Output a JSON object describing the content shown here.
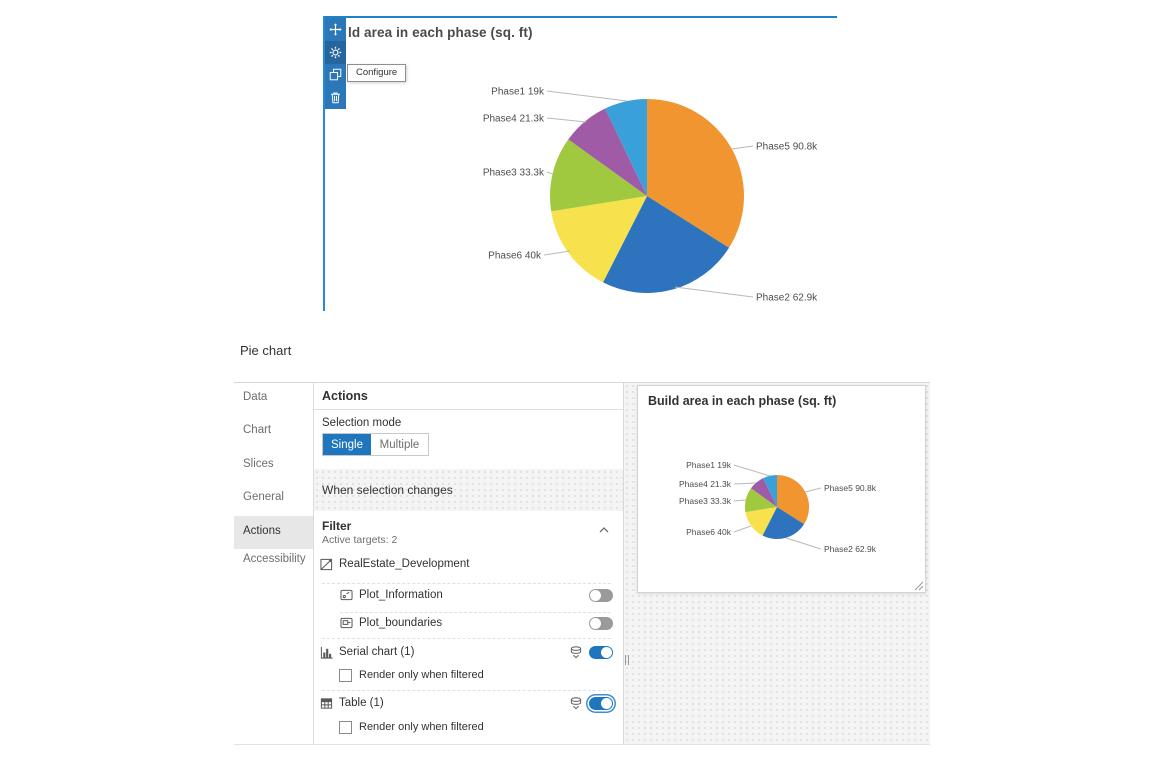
{
  "accent": {
    "blue": "#1f76bd",
    "selection_border": "#1f82c9",
    "toolbar_blue": "#2b77b7",
    "toggle_off": "#9a9a9a"
  },
  "widget": {
    "title_visible": "ld area in each phase (sq. ft)",
    "tooltip": "Configure",
    "toolbar": {
      "move": "Move",
      "settings": "Settings",
      "duplicate": "Duplicate",
      "delete": "Delete"
    }
  },
  "chart_data": {
    "type": "pie",
    "title": "Build area in each phase (sq. ft)",
    "unit": "sq. ft",
    "direction": "clockwise",
    "start_angle_deg": 0,
    "label_style": "outside-with-leader-lines",
    "slices": [
      {
        "name": "Phase5",
        "value": 90800,
        "label": "Phase5 90.8k",
        "color": "#F0952F"
      },
      {
        "name": "Phase2",
        "value": 62900,
        "label": "Phase2 62.9k",
        "color": "#2E73BD"
      },
      {
        "name": "Phase6",
        "value": 40000,
        "label": "Phase6 40k",
        "color": "#F7E14C"
      },
      {
        "name": "Phase3",
        "value": 33300,
        "label": "Phase3 33.3k",
        "color": "#A1C93F"
      },
      {
        "name": "Phase4",
        "value": 21300,
        "label": "Phase4 21.3k",
        "color": "#9F5BA6"
      },
      {
        "name": "Phase1",
        "value": 19000,
        "label": "Phase1 19k",
        "color": "#3AA0DA"
      }
    ]
  },
  "dialog": {
    "title": "Pie chart",
    "tabs": [
      "Data",
      "Chart",
      "Slices",
      "General",
      "Actions",
      "Accessibility"
    ],
    "active_tab": "Actions",
    "actions": {
      "header": "Actions",
      "selection_mode_label": "Selection mode",
      "mode_options": [
        "Single",
        "Multiple"
      ],
      "selected_mode": "Single",
      "when_selection_changes": "When selection changes",
      "filter": {
        "title": "Filter",
        "active_targets": "Active targets: 2",
        "map_target": "RealEstate_Development",
        "layer_targets": [
          {
            "label": "Plot_Information",
            "enabled": false
          },
          {
            "label": "Plot_boundaries",
            "enabled": false
          }
        ],
        "widget_targets": [
          {
            "label": "Serial chart (1)",
            "enabled": true,
            "focused": false,
            "render_only_label": "Render only when filtered",
            "render_only_checked": false
          },
          {
            "label": "Table (1)",
            "enabled": true,
            "focused": true,
            "render_only_label": "Render only when filtered",
            "render_only_checked": false
          }
        ]
      }
    }
  },
  "preview": {
    "title": "Build area in each phase (sq. ft)"
  },
  "icons": [
    "move-icon",
    "gear-icon",
    "duplicate-icon",
    "trash-icon",
    "chevron-up-icon",
    "map-icon",
    "layer-icon",
    "layer-group-icon",
    "serial-chart-icon",
    "table-icon",
    "data-source-icon",
    "resize-corner-icon",
    "splitter-handle-icon"
  ]
}
